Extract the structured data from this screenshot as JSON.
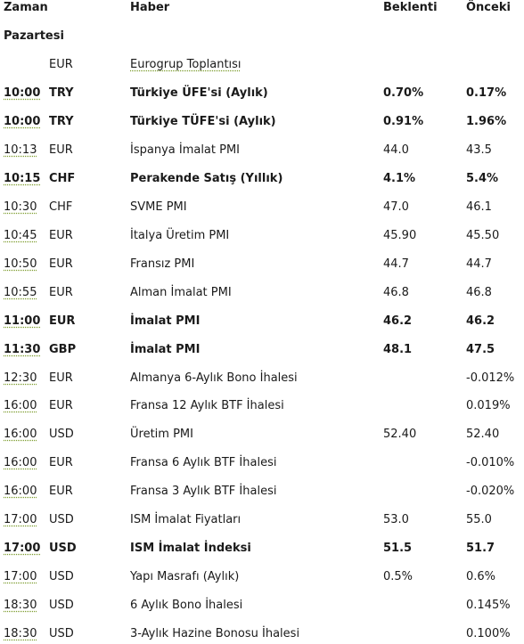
{
  "header": {
    "time": "Zaman",
    "news": "Haber",
    "expected": "Beklenti",
    "previous": "Önceki"
  },
  "day_label": "Pazartesi",
  "group_row": {
    "currency": "EUR",
    "news": "Eurogrup Toplantısı"
  },
  "rows": [
    {
      "time": "10:00",
      "currency": "TRY",
      "news": "Türkiye ÜFE'si (Aylık)",
      "expected": "0.70%",
      "previous": "0.17%",
      "bold": true
    },
    {
      "time": "10:00",
      "currency": "TRY",
      "news": "Türkiye TÜFE'si (Aylık)",
      "expected": "0.91%",
      "previous": "1.96%",
      "bold": true
    },
    {
      "time": "10:13",
      "currency": "EUR",
      "news": "İspanya İmalat PMI",
      "expected": " 44.0",
      "previous": "43.5",
      "bold": false
    },
    {
      "time": "10:15",
      "currency": "CHF",
      "news": "Perakende Satış (Yıllık)",
      "expected": "4.1%",
      "previous": "5.4%",
      "bold": true
    },
    {
      "time": "10:30",
      "currency": "CHF",
      "news": "SVME PMI",
      "expected": "47.0",
      "previous": "46.1",
      "bold": false
    },
    {
      "time": "10:45",
      "currency": "EUR",
      "news": "İtalya Üretim PMI",
      "expected": "45.90",
      "previous": "45.50",
      "bold": false
    },
    {
      "time": "10:50",
      "currency": "EUR",
      "news": "Fransız PMI",
      "expected": "44.7",
      "previous": "44.7",
      "bold": false
    },
    {
      "time": "10:55",
      "currency": "EUR",
      "news": "Alman İmalat PMI",
      "expected": "46.8",
      "previous": "46.8",
      "bold": false
    },
    {
      "time": "11:00",
      "currency": "EUR",
      "news": "İmalat PMI",
      "expected": "46.2",
      "previous": "46.2",
      "bold": true
    },
    {
      "time": "11:30",
      "currency": "GBP",
      "news": "İmalat PMI",
      "expected": "48.1",
      "previous": "47.5",
      "bold": true
    },
    {
      "time": "12:30",
      "currency": "EUR",
      "news": "Almanya 6-Aylık Bono İhalesi",
      "expected": "",
      "previous": "-0.012%",
      "bold": false
    },
    {
      "time": "16:00",
      "currency": "EUR",
      "news": "Fransa 12 Aylık BTF İhalesi",
      "expected": "",
      "previous": "0.019%",
      "bold": false
    },
    {
      "time": "16:00",
      "currency": "USD",
      "news": "Üretim PMI",
      "expected": "52.40",
      "previous": "52.40",
      "bold": false
    },
    {
      "time": "16:00",
      "currency": "EUR",
      "news": "Fransa 6 Aylık BTF İhalesi",
      "expected": "",
      "previous": "-0.010%",
      "bold": false
    },
    {
      "time": "16:00",
      "currency": "EUR",
      "news": "Fransa 3 Aylık BTF İhalesi",
      "expected": "",
      "previous": "-0.020%",
      "bold": false
    },
    {
      "time": "17:00",
      "currency": "USD",
      "news": "ISM İmalat Fiyatları",
      "expected": "53.0",
      "previous": "55.0",
      "bold": false
    },
    {
      "time": "17:00",
      "currency": "USD",
      "news": "ISM İmalat İndeksi",
      "expected": "51.5",
      "previous": "51.7",
      "bold": true
    },
    {
      "time": "17:00",
      "currency": "USD",
      "news": "Yapı Masrafı (Aylık)",
      "expected": "0.5%",
      "previous": "0.6%",
      "bold": false
    },
    {
      "time": "18:30",
      "currency": "USD",
      "news": "6 Aylık Bono İhalesi",
      "expected": "",
      "previous": "0.145%",
      "bold": false
    },
    {
      "time": "18:30",
      "currency": "USD",
      "news": "3-Aylık Hazine Bonosu İhalesi",
      "expected": "",
      "previous": "0.100%",
      "bold": false
    }
  ]
}
